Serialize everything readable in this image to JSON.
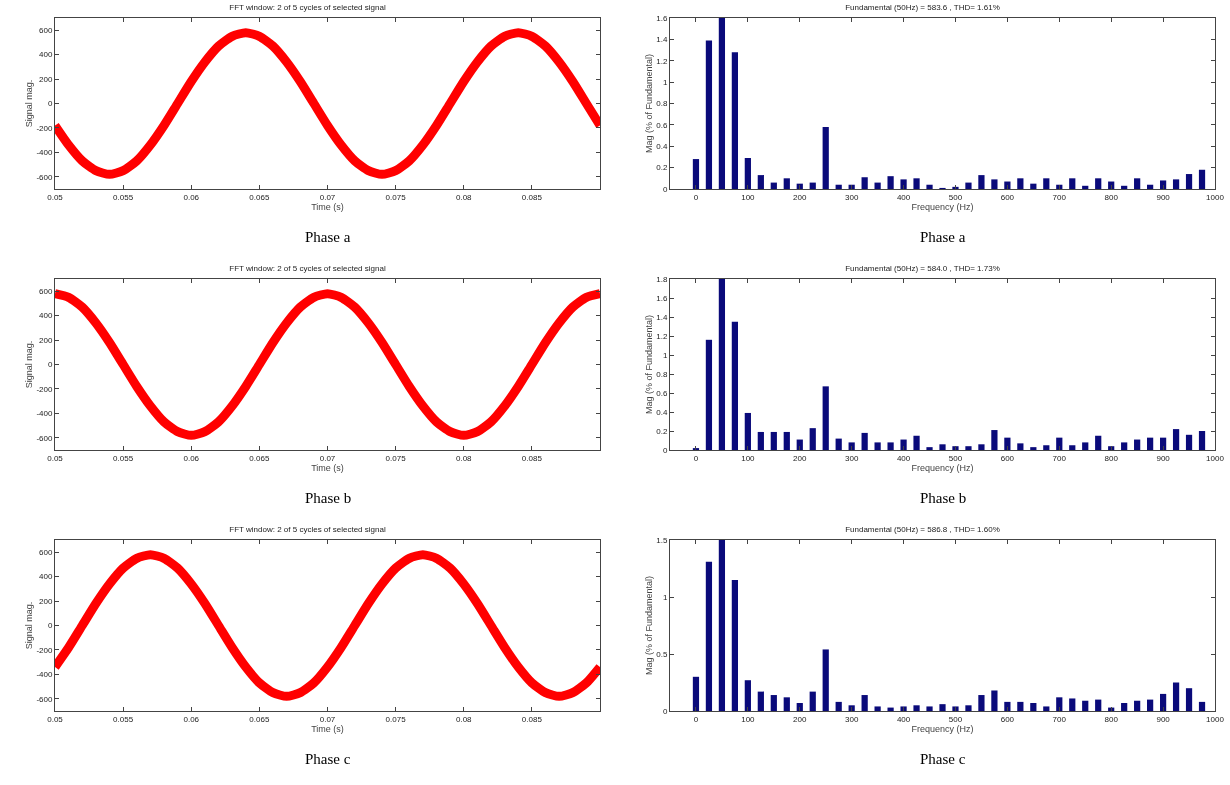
{
  "chart_data": [
    {
      "type": "line",
      "title": "FFT window: 2 of 5 cycles of selected signal",
      "xlabel": "Time (s)",
      "ylabel": "Signal mag.",
      "annotations": [
        "Phase a"
      ],
      "x": [
        0.05,
        0.051,
        0.052,
        0.053,
        0.054,
        0.055,
        0.056,
        0.057,
        0.058,
        0.059,
        0.06,
        0.061,
        0.062,
        0.063,
        0.064,
        0.065,
        0.066,
        0.067,
        0.068,
        0.069,
        0.07,
        0.071,
        0.072,
        0.073,
        0.074,
        0.075,
        0.076,
        0.077,
        0.078,
        0.079,
        0.08,
        0.081,
        0.082,
        0.083,
        0.084,
        0.085,
        0.086,
        0.087,
        0.088,
        0.089,
        0.09
      ],
      "series": [
        {
          "color": "#ff0000",
          "values": [
            -180,
            -340,
            -470,
            -550,
            -580,
            -550,
            -470,
            -340,
            -180,
            0,
            180,
            340,
            470,
            550,
            580,
            550,
            470,
            340,
            180,
            0,
            -180,
            -340,
            -470,
            -550,
            -580,
            -550,
            -470,
            -340,
            -180,
            0,
            180,
            340,
            470,
            550,
            580,
            550,
            470,
            340,
            180,
            0,
            -180
          ]
        }
      ],
      "xlim": [
        0.05,
        0.09
      ],
      "xticks": [
        0.05,
        0.055,
        0.06,
        0.065,
        0.07,
        0.075,
        0.08,
        0.085
      ],
      "ylim": [
        -700,
        700
      ],
      "yticks": [
        -600,
        -400,
        -200,
        0,
        200,
        400,
        600
      ]
    },
    {
      "type": "bar",
      "title": "Fundamental (50Hz) = 583.6 , THD= 1.61%",
      "xlabel": "Frequency (Hz)",
      "ylabel": "Mag (% of Fundamental)",
      "annotations": [
        "Phase a"
      ],
      "x": [
        0,
        25,
        50,
        75,
        100,
        125,
        150,
        175,
        200,
        225,
        250,
        275,
        300,
        325,
        350,
        375,
        400,
        425,
        450,
        475,
        500,
        525,
        550,
        575,
        600,
        625,
        650,
        675,
        700,
        725,
        750,
        775,
        800,
        825,
        850,
        875,
        900,
        925,
        950,
        975
      ],
      "series": [
        {
          "color": "#0a0a7a",
          "values": [
            0.28,
            1.39,
            1.6,
            1.28,
            0.29,
            0.13,
            0.06,
            0.1,
            0.05,
            0.06,
            0.58,
            0.04,
            0.04,
            0.11,
            0.06,
            0.12,
            0.09,
            0.1,
            0.04,
            0.01,
            0.02,
            0.06,
            0.13,
            0.09,
            0.07,
            0.1,
            0.05,
            0.1,
            0.04,
            0.1,
            0.03,
            0.1,
            0.07,
            0.03,
            0.1,
            0.04,
            0.08,
            0.09,
            0.14,
            0.18
          ]
        }
      ],
      "xlim": [
        -50,
        1000
      ],
      "xticks": [
        0,
        100,
        200,
        300,
        400,
        500,
        600,
        700,
        800,
        900,
        1000
      ],
      "ylim": [
        0,
        1.6
      ],
      "yticks": [
        0,
        0.2,
        0.4,
        0.6,
        0.8,
        1,
        1.2,
        1.4,
        1.6
      ]
    },
    {
      "type": "line",
      "title": "FFT window: 2 of 5 cycles of selected signal",
      "xlabel": "Time (s)",
      "ylabel": "Signal mag.",
      "annotations": [
        "Phase b"
      ],
      "x": [
        0.05,
        0.051,
        0.052,
        0.053,
        0.054,
        0.055,
        0.056,
        0.057,
        0.058,
        0.059,
        0.06,
        0.061,
        0.062,
        0.063,
        0.064,
        0.065,
        0.066,
        0.067,
        0.068,
        0.069,
        0.07,
        0.071,
        0.072,
        0.073,
        0.074,
        0.075,
        0.076,
        0.077,
        0.078,
        0.079,
        0.08,
        0.081,
        0.082,
        0.083,
        0.084,
        0.085,
        0.086,
        0.087,
        0.088,
        0.089,
        0.09
      ],
      "series": [
        {
          "color": "#ff0000",
          "values": [
            580,
            550,
            470,
            340,
            180,
            0,
            -180,
            -340,
            -470,
            -550,
            -580,
            -550,
            -470,
            -340,
            -180,
            0,
            180,
            340,
            470,
            550,
            580,
            550,
            470,
            340,
            180,
            0,
            -180,
            -340,
            -470,
            -550,
            -580,
            -550,
            -470,
            -340,
            -180,
            0,
            180,
            340,
            470,
            550,
            580
          ]
        }
      ],
      "xlim": [
        0.05,
        0.09
      ],
      "xticks": [
        0.05,
        0.055,
        0.06,
        0.065,
        0.07,
        0.075,
        0.08,
        0.085
      ],
      "ylim": [
        -700,
        700
      ],
      "yticks": [
        -600,
        -400,
        -200,
        0,
        200,
        400,
        600
      ]
    },
    {
      "type": "bar",
      "title": "Fundamental (50Hz) = 584.0 , THD= 1.73%",
      "xlabel": "Frequency (Hz)",
      "ylabel": "Mag (% of Fundamental)",
      "annotations": [
        "Phase b"
      ],
      "x": [
        0,
        25,
        50,
        75,
        100,
        125,
        150,
        175,
        200,
        225,
        250,
        275,
        300,
        325,
        350,
        375,
        400,
        425,
        450,
        475,
        500,
        525,
        550,
        575,
        600,
        625,
        650,
        675,
        700,
        725,
        750,
        775,
        800,
        825,
        850,
        875,
        900,
        925,
        950,
        975
      ],
      "series": [
        {
          "color": "#0a0a7a",
          "values": [
            0.02,
            1.16,
            1.8,
            1.35,
            0.39,
            0.19,
            0.19,
            0.19,
            0.11,
            0.23,
            0.67,
            0.12,
            0.08,
            0.18,
            0.08,
            0.08,
            0.11,
            0.15,
            0.03,
            0.06,
            0.04,
            0.04,
            0.06,
            0.21,
            0.13,
            0.07,
            0.03,
            0.05,
            0.13,
            0.05,
            0.08,
            0.15,
            0.04,
            0.08,
            0.11,
            0.13,
            0.13,
            0.22,
            0.16,
            0.2
          ]
        }
      ],
      "xlim": [
        -50,
        1000
      ],
      "xticks": [
        0,
        100,
        200,
        300,
        400,
        500,
        600,
        700,
        800,
        900,
        1000
      ],
      "ylim": [
        0,
        1.8
      ],
      "yticks": [
        0,
        0.2,
        0.4,
        0.6,
        0.8,
        1,
        1.2,
        1.4,
        1.6,
        1.8
      ]
    },
    {
      "type": "line",
      "title": "FFT window: 2 of 5 cycles of selected signal",
      "xlabel": "Time (s)",
      "ylabel": "Signal mag.",
      "annotations": [
        "Phase c"
      ],
      "x": [
        0.05,
        0.051,
        0.052,
        0.053,
        0.054,
        0.055,
        0.056,
        0.057,
        0.058,
        0.059,
        0.06,
        0.061,
        0.062,
        0.063,
        0.064,
        0.065,
        0.066,
        0.067,
        0.068,
        0.069,
        0.07,
        0.071,
        0.072,
        0.073,
        0.074,
        0.075,
        0.076,
        0.077,
        0.078,
        0.079,
        0.08,
        0.081,
        0.082,
        0.083,
        0.084,
        0.085,
        0.086,
        0.087,
        0.088,
        0.089,
        0.09
      ],
      "series": [
        {
          "color": "#ff0000",
          "values": [
            -340,
            -180,
            0,
            180,
            340,
            470,
            550,
            580,
            550,
            470,
            340,
            180,
            0,
            -180,
            -340,
            -470,
            -550,
            -580,
            -550,
            -470,
            -340,
            -180,
            0,
            180,
            340,
            470,
            550,
            580,
            550,
            470,
            340,
            180,
            0,
            -180,
            -340,
            -470,
            -550,
            -580,
            -550,
            -470,
            -340
          ]
        }
      ],
      "xlim": [
        0.05,
        0.09
      ],
      "xticks": [
        0.05,
        0.055,
        0.06,
        0.065,
        0.07,
        0.075,
        0.08,
        0.085
      ],
      "ylim": [
        -700,
        700
      ],
      "yticks": [
        -600,
        -400,
        -200,
        0,
        200,
        400,
        600
      ]
    },
    {
      "type": "bar",
      "title": "Fundamental (50Hz) = 586.8 , THD= 1.60%",
      "xlabel": "Frequency (Hz)",
      "ylabel": "Mag (% of Fundamental)",
      "annotations": [
        "Phase c"
      ],
      "x": [
        0,
        25,
        50,
        75,
        100,
        125,
        150,
        175,
        200,
        225,
        250,
        275,
        300,
        325,
        350,
        375,
        400,
        425,
        450,
        475,
        500,
        525,
        550,
        575,
        600,
        625,
        650,
        675,
        700,
        725,
        750,
        775,
        800,
        825,
        850,
        875,
        900,
        925,
        950,
        975
      ],
      "series": [
        {
          "color": "#0a0a7a",
          "values": [
            0.3,
            1.31,
            1.5,
            1.15,
            0.27,
            0.17,
            0.14,
            0.12,
            0.07,
            0.17,
            0.54,
            0.08,
            0.05,
            0.14,
            0.04,
            0.03,
            0.04,
            0.05,
            0.04,
            0.06,
            0.04,
            0.05,
            0.14,
            0.18,
            0.08,
            0.08,
            0.07,
            0.04,
            0.12,
            0.11,
            0.09,
            0.1,
            0.03,
            0.07,
            0.09,
            0.1,
            0.15,
            0.25,
            0.2,
            0.08
          ]
        }
      ],
      "xlim": [
        -50,
        1000
      ],
      "xticks": [
        0,
        100,
        200,
        300,
        400,
        500,
        600,
        700,
        800,
        900,
        1000
      ],
      "ylim": [
        0,
        1.5
      ],
      "yticks": [
        0,
        0.5,
        1,
        1.5
      ]
    }
  ]
}
